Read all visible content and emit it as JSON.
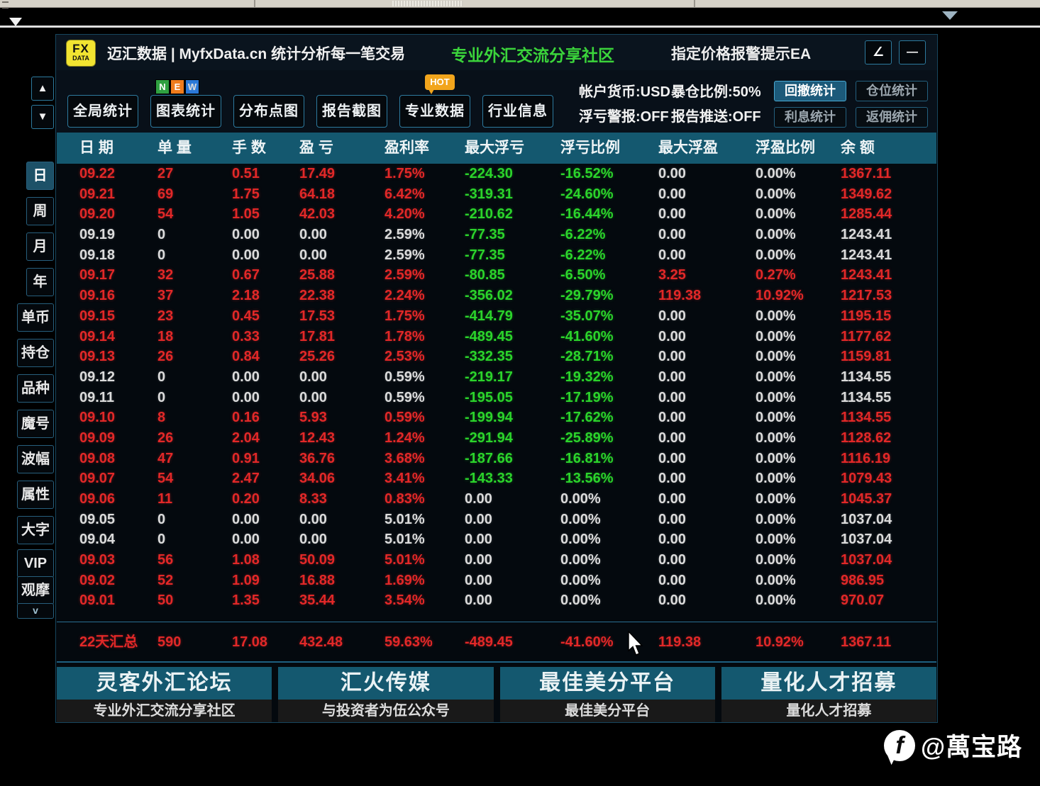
{
  "window": {
    "logo": {
      "line1": "FX",
      "line2": "DATA"
    },
    "title": "迈汇数据 | MyfxData.cn  统计分析每一笔交易",
    "community": "专业外汇交流分享社区",
    "ea_label": "指定价格报警提示EA",
    "resize_glyph": "∠",
    "minimize_glyph": "—"
  },
  "toolbar": {
    "buttons": [
      {
        "name": "global-stats",
        "label": "全局统计"
      },
      {
        "name": "chart-stats",
        "label": "图表统计"
      },
      {
        "name": "distribution-plot",
        "label": "分布点图"
      },
      {
        "name": "report-screenshot",
        "label": "报告截图"
      },
      {
        "name": "pro-data",
        "label": "专业数据"
      },
      {
        "name": "industry-info",
        "label": "行业信息"
      }
    ],
    "new_badge": [
      "N",
      "E",
      "W"
    ],
    "hot_badge": "HOT",
    "account_currency": "帐户货币:USD",
    "margin_ratio": "暴仓比例:50%",
    "loss_alert": "浮亏警报:OFF",
    "report_push": "报告推送:OFF",
    "stat_buttons": [
      {
        "name": "drawdown-stats",
        "label": "回撤统计",
        "active": true
      },
      {
        "name": "position-stats",
        "label": "仓位统计",
        "active": false
      },
      {
        "name": "interest-stats",
        "label": "利息统计",
        "active": false
      },
      {
        "name": "rebate-stats",
        "label": "返佣统计",
        "active": false
      }
    ]
  },
  "sidebar": {
    "up": "▲",
    "down": "▼",
    "items": [
      {
        "name": "day",
        "label": "日",
        "narrow": true,
        "selected": true
      },
      {
        "name": "week",
        "label": "周",
        "narrow": true
      },
      {
        "name": "month",
        "label": "月",
        "narrow": true
      },
      {
        "name": "year",
        "label": "年",
        "narrow": true
      },
      {
        "name": "single-currency",
        "label": "单币"
      },
      {
        "name": "holdings",
        "label": "持仓"
      },
      {
        "name": "symbols",
        "label": "品种"
      },
      {
        "name": "magic-number",
        "label": "魔号"
      },
      {
        "name": "volatility",
        "label": "波幅"
      },
      {
        "name": "attributes",
        "label": "属性"
      },
      {
        "name": "large-font",
        "label": "大字"
      },
      {
        "name": "vip",
        "label": "VIP"
      },
      {
        "name": "observe",
        "label": "观摩"
      },
      {
        "name": "collapse-chevron",
        "label": "v",
        "chevron": true
      }
    ]
  },
  "table": {
    "col_names": [
      "date",
      "orders",
      "lots",
      "profit",
      "profit-rate",
      "max-float-loss",
      "float-loss-ratio",
      "max-float-profit",
      "float-profit-ratio",
      "balance"
    ],
    "headers": [
      "日 期",
      "单 量",
      "手 数",
      "盈 亏",
      "盈利率",
      "最大浮亏",
      "浮亏比例",
      "最大浮盈",
      "浮盈比例",
      "余 额"
    ],
    "rows": [
      {
        "cells": [
          "09.22",
          "27",
          "0.51",
          "17.49",
          "1.75%",
          "-224.30",
          "-16.52%",
          "0.00",
          "0.00%",
          "1367.11"
        ],
        "colors": [
          "r",
          "r",
          "r",
          "r",
          "r",
          "g",
          "g",
          "w",
          "w",
          "r"
        ]
      },
      {
        "cells": [
          "09.21",
          "69",
          "1.75",
          "64.18",
          "6.42%",
          "-319.31",
          "-24.60%",
          "0.00",
          "0.00%",
          "1349.62"
        ],
        "colors": [
          "r",
          "r",
          "r",
          "r",
          "r",
          "g",
          "g",
          "w",
          "w",
          "r"
        ]
      },
      {
        "cells": [
          "09.20",
          "54",
          "1.05",
          "42.03",
          "4.20%",
          "-210.62",
          "-16.44%",
          "0.00",
          "0.00%",
          "1285.44"
        ],
        "colors": [
          "r",
          "r",
          "r",
          "r",
          "r",
          "g",
          "g",
          "w",
          "w",
          "r"
        ]
      },
      {
        "cells": [
          "09.19",
          "0",
          "0.00",
          "0.00",
          "2.59%",
          "-77.35",
          "-6.22%",
          "0.00",
          "0.00%",
          "1243.41"
        ],
        "colors": [
          "w",
          "w",
          "w",
          "w",
          "w",
          "g",
          "g",
          "w",
          "w",
          "w"
        ]
      },
      {
        "cells": [
          "09.18",
          "0",
          "0.00",
          "0.00",
          "2.59%",
          "-77.35",
          "-6.22%",
          "0.00",
          "0.00%",
          "1243.41"
        ],
        "colors": [
          "w",
          "w",
          "w",
          "w",
          "w",
          "g",
          "g",
          "w",
          "w",
          "w"
        ]
      },
      {
        "cells": [
          "09.17",
          "32",
          "0.67",
          "25.88",
          "2.59%",
          "-80.85",
          "-6.50%",
          "3.25",
          "0.27%",
          "1243.41"
        ],
        "colors": [
          "r",
          "r",
          "r",
          "r",
          "r",
          "g",
          "g",
          "r",
          "r",
          "r"
        ]
      },
      {
        "cells": [
          "09.16",
          "37",
          "2.18",
          "22.38",
          "2.24%",
          "-356.02",
          "-29.79%",
          "119.38",
          "10.92%",
          "1217.53"
        ],
        "colors": [
          "r",
          "r",
          "r",
          "r",
          "r",
          "g",
          "g",
          "r",
          "r",
          "r"
        ]
      },
      {
        "cells": [
          "09.15",
          "23",
          "0.45",
          "17.53",
          "1.75%",
          "-414.79",
          "-35.07%",
          "0.00",
          "0.00%",
          "1195.15"
        ],
        "colors": [
          "r",
          "r",
          "r",
          "r",
          "r",
          "g",
          "g",
          "w",
          "w",
          "r"
        ]
      },
      {
        "cells": [
          "09.14",
          "18",
          "0.33",
          "17.81",
          "1.78%",
          "-489.45",
          "-41.60%",
          "0.00",
          "0.00%",
          "1177.62"
        ],
        "colors": [
          "r",
          "r",
          "r",
          "r",
          "r",
          "g",
          "g",
          "w",
          "w",
          "r"
        ]
      },
      {
        "cells": [
          "09.13",
          "26",
          "0.84",
          "25.26",
          "2.53%",
          "-332.35",
          "-28.71%",
          "0.00",
          "0.00%",
          "1159.81"
        ],
        "colors": [
          "r",
          "r",
          "r",
          "r",
          "r",
          "g",
          "g",
          "w",
          "w",
          "r"
        ]
      },
      {
        "cells": [
          "09.12",
          "0",
          "0.00",
          "0.00",
          "0.59%",
          "-219.17",
          "-19.32%",
          "0.00",
          "0.00%",
          "1134.55"
        ],
        "colors": [
          "w",
          "w",
          "w",
          "w",
          "w",
          "g",
          "g",
          "w",
          "w",
          "w"
        ]
      },
      {
        "cells": [
          "09.11",
          "0",
          "0.00",
          "0.00",
          "0.59%",
          "-195.05",
          "-17.19%",
          "0.00",
          "0.00%",
          "1134.55"
        ],
        "colors": [
          "w",
          "w",
          "w",
          "w",
          "w",
          "g",
          "g",
          "w",
          "w",
          "w"
        ]
      },
      {
        "cells": [
          "09.10",
          "8",
          "0.16",
          "5.93",
          "0.59%",
          "-199.94",
          "-17.62%",
          "0.00",
          "0.00%",
          "1134.55"
        ],
        "colors": [
          "r",
          "r",
          "r",
          "r",
          "r",
          "g",
          "g",
          "w",
          "w",
          "r"
        ]
      },
      {
        "cells": [
          "09.09",
          "26",
          "2.04",
          "12.43",
          "1.24%",
          "-291.94",
          "-25.89%",
          "0.00",
          "0.00%",
          "1128.62"
        ],
        "colors": [
          "r",
          "r",
          "r",
          "r",
          "r",
          "g",
          "g",
          "w",
          "w",
          "r"
        ]
      },
      {
        "cells": [
          "09.08",
          "47",
          "0.91",
          "36.76",
          "3.68%",
          "-187.66",
          "-16.81%",
          "0.00",
          "0.00%",
          "1116.19"
        ],
        "colors": [
          "r",
          "r",
          "r",
          "r",
          "r",
          "g",
          "g",
          "w",
          "w",
          "r"
        ]
      },
      {
        "cells": [
          "09.07",
          "54",
          "2.47",
          "34.06",
          "3.41%",
          "-143.33",
          "-13.56%",
          "0.00",
          "0.00%",
          "1079.43"
        ],
        "colors": [
          "r",
          "r",
          "r",
          "r",
          "r",
          "g",
          "g",
          "w",
          "w",
          "r"
        ]
      },
      {
        "cells": [
          "09.06",
          "11",
          "0.20",
          "8.33",
          "0.83%",
          "0.00",
          "0.00%",
          "0.00",
          "0.00%",
          "1045.37"
        ],
        "colors": [
          "r",
          "r",
          "r",
          "r",
          "r",
          "w",
          "w",
          "w",
          "w",
          "r"
        ]
      },
      {
        "cells": [
          "09.05",
          "0",
          "0.00",
          "0.00",
          "5.01%",
          "0.00",
          "0.00%",
          "0.00",
          "0.00%",
          "1037.04"
        ],
        "colors": [
          "w",
          "w",
          "w",
          "w",
          "w",
          "w",
          "w",
          "w",
          "w",
          "w"
        ]
      },
      {
        "cells": [
          "09.04",
          "0",
          "0.00",
          "0.00",
          "5.01%",
          "0.00",
          "0.00%",
          "0.00",
          "0.00%",
          "1037.04"
        ],
        "colors": [
          "w",
          "w",
          "w",
          "w",
          "w",
          "w",
          "w",
          "w",
          "w",
          "w"
        ]
      },
      {
        "cells": [
          "09.03",
          "56",
          "1.08",
          "50.09",
          "5.01%",
          "0.00",
          "0.00%",
          "0.00",
          "0.00%",
          "1037.04"
        ],
        "colors": [
          "r",
          "r",
          "r",
          "r",
          "r",
          "w",
          "w",
          "w",
          "w",
          "r"
        ]
      },
      {
        "cells": [
          "09.02",
          "52",
          "1.09",
          "16.88",
          "1.69%",
          "0.00",
          "0.00%",
          "0.00",
          "0.00%",
          "986.95"
        ],
        "colors": [
          "r",
          "r",
          "r",
          "r",
          "r",
          "w",
          "w",
          "w",
          "w",
          "r"
        ]
      },
      {
        "cells": [
          "09.01",
          "50",
          "1.35",
          "35.44",
          "3.54%",
          "0.00",
          "0.00%",
          "0.00",
          "0.00%",
          "970.07"
        ],
        "colors": [
          "r",
          "r",
          "r",
          "r",
          "r",
          "w",
          "w",
          "w",
          "w",
          "r"
        ]
      }
    ],
    "summary": {
      "cells": [
        "22天汇总",
        "590",
        "17.08",
        "432.48",
        "59.63%",
        "-489.45",
        "-41.60%",
        "119.38",
        "10.92%",
        "1367.11"
      ]
    }
  },
  "banners": [
    {
      "name": "lingke-forex-forum",
      "title": "灵客外汇论坛",
      "subtitle": "专业外汇交流分享社区"
    },
    {
      "name": "huihuo-media",
      "title": "汇火传媒",
      "subtitle": "与投资者为伍公众号"
    },
    {
      "name": "best-cent-platform",
      "title": "最佳美分平台",
      "subtitle": "最佳美分平台"
    },
    {
      "name": "quant-talent-recruit",
      "title": "量化人才招募",
      "subtitle": "量化人才招募"
    }
  ],
  "watermark": {
    "handle": "@萬宝路"
  },
  "colors": {
    "red": "#e22828",
    "green": "#2bd42b",
    "white": "#dcdcdc",
    "teal": "#14586f",
    "accent_border": "#2d7a9e"
  }
}
